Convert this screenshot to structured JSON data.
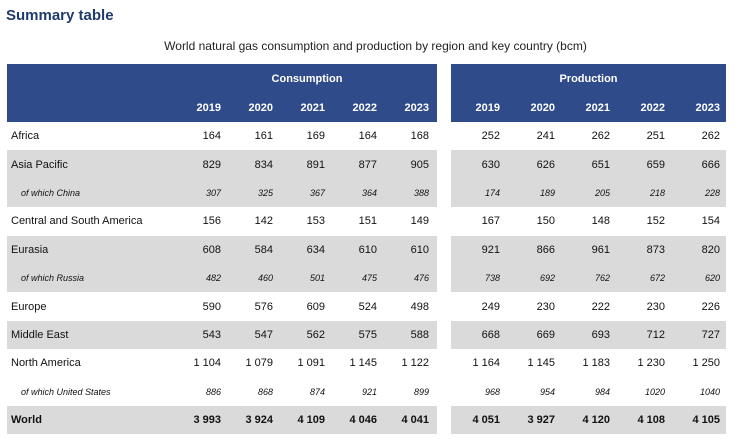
{
  "title": "Summary table",
  "subtitle": "World natural gas consumption and production by region and key country (bcm)",
  "consumption_header": "Consumption",
  "production_header": "Production",
  "years": [
    "2019",
    "2020",
    "2021",
    "2022",
    "2023"
  ],
  "rows": [
    {
      "label": "Africa",
      "type": "main",
      "shade": false,
      "consumption": [
        "164",
        "161",
        "169",
        "164",
        "168"
      ],
      "production": [
        "252",
        "241",
        "262",
        "251",
        "262"
      ]
    },
    {
      "label": "Asia Pacific",
      "type": "main",
      "shade": true,
      "consumption": [
        "829",
        "834",
        "891",
        "877",
        "905"
      ],
      "production": [
        "630",
        "626",
        "651",
        "659",
        "666"
      ]
    },
    {
      "label": "of which China",
      "type": "sub",
      "shade": true,
      "consumption": [
        "307",
        "325",
        "367",
        "364",
        "388"
      ],
      "production": [
        "174",
        "189",
        "205",
        "218",
        "228"
      ]
    },
    {
      "label": "Central and South America",
      "type": "main",
      "shade": false,
      "consumption": [
        "156",
        "142",
        "153",
        "151",
        "149"
      ],
      "production": [
        "167",
        "150",
        "148",
        "152",
        "154"
      ]
    },
    {
      "label": "Eurasia",
      "type": "main",
      "shade": true,
      "consumption": [
        "608",
        "584",
        "634",
        "610",
        "610"
      ],
      "production": [
        "921",
        "866",
        "961",
        "873",
        "820"
      ]
    },
    {
      "label": "of which Russia",
      "type": "sub",
      "shade": true,
      "consumption": [
        "482",
        "460",
        "501",
        "475",
        "476"
      ],
      "production": [
        "738",
        "692",
        "762",
        "672",
        "620"
      ]
    },
    {
      "label": "Europe",
      "type": "main",
      "shade": false,
      "consumption": [
        "590",
        "576",
        "609",
        "524",
        "498"
      ],
      "production": [
        "249",
        "230",
        "222",
        "230",
        "226"
      ]
    },
    {
      "label": "Middle East",
      "type": "main",
      "shade": true,
      "consumption": [
        "543",
        "547",
        "562",
        "575",
        "588"
      ],
      "production": [
        "668",
        "669",
        "693",
        "712",
        "727"
      ]
    },
    {
      "label": "North America",
      "type": "main",
      "shade": false,
      "consumption": [
        "1 104",
        "1 079",
        "1 091",
        "1 145",
        "1 122"
      ],
      "production": [
        "1 164",
        "1 145",
        "1 183",
        "1 230",
        "1 250"
      ]
    },
    {
      "label": "of which United States",
      "type": "sub",
      "shade": false,
      "consumption": [
        "886",
        "868",
        "874",
        "921",
        "899"
      ],
      "production": [
        "968",
        "954",
        "984",
        "1020",
        "1040"
      ]
    },
    {
      "label": "World",
      "type": "world",
      "shade": true,
      "consumption": [
        "3 993",
        "3 924",
        "4 109",
        "4 046",
        "4 041"
      ],
      "production": [
        "4 051",
        "3 927",
        "4 120",
        "4 108",
        "4 105"
      ]
    }
  ]
}
